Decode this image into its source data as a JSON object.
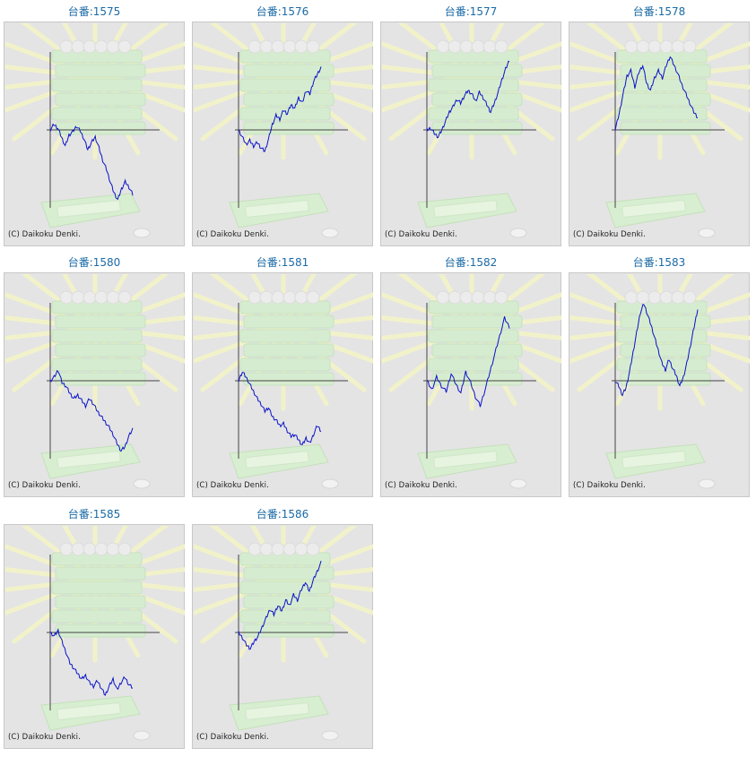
{
  "copyright": "(C) Daikoku Denki.",
  "colors": {
    "label": "#1a6aa6",
    "line": "#0a12c8",
    "axis": "#444444",
    "background": "#e4e4e4"
  },
  "machines": [
    {
      "label": "台番:1575",
      "trend": [
        0,
        6,
        2,
        -8,
        -18,
        -6,
        -2,
        4,
        -1,
        -10,
        -22,
        -14,
        -8,
        -20,
        -34,
        -44,
        -58,
        -70,
        -78,
        -66,
        -58,
        -64,
        -72
      ]
    },
    {
      "label": "台番:1576",
      "trend": [
        0,
        -8,
        -16,
        -12,
        -18,
        -14,
        -20,
        -24,
        -10,
        6,
        16,
        12,
        22,
        18,
        28,
        24,
        36,
        30,
        44,
        40,
        54,
        62,
        70
      ]
    },
    {
      "label": "台番:1577",
      "trend": [
        0,
        2,
        -4,
        -8,
        0,
        10,
        20,
        26,
        34,
        30,
        38,
        44,
        40,
        32,
        42,
        36,
        28,
        20,
        30,
        42,
        56,
        68,
        78
      ]
    },
    {
      "label": "台番:1578",
      "trend": [
        0,
        18,
        40,
        60,
        66,
        48,
        64,
        72,
        52,
        44,
        58,
        66,
        58,
        72,
        82,
        72,
        62,
        50,
        40,
        30,
        20,
        14
      ]
    },
    {
      "label": "台番:1580",
      "trend": [
        0,
        4,
        12,
        -2,
        -6,
        -14,
        -20,
        -16,
        -22,
        -28,
        -20,
        -26,
        -34,
        -40,
        -46,
        -52,
        -60,
        -70,
        -78,
        -74,
        -62,
        -54
      ]
    },
    {
      "label": "台番:1581",
      "trend": [
        0,
        10,
        4,
        -4,
        -12,
        -20,
        -26,
        -34,
        -30,
        -40,
        -44,
        -50,
        -48,
        -56,
        -62,
        -60,
        -66,
        -72,
        -64,
        -70,
        -60,
        -50,
        -56
      ]
    },
    {
      "label": "台番:1582",
      "trend": [
        0,
        -10,
        4,
        -6,
        -12,
        8,
        -4,
        -14,
        10,
        -2,
        -18,
        -28,
        -10,
        10,
        30,
        50,
        70,
        60
      ]
    },
    {
      "label": "台番:1583",
      "trend": [
        0,
        -6,
        -16,
        -8,
        10,
        32,
        54,
        76,
        86,
        74,
        62,
        48,
        34,
        20,
        12,
        24,
        14,
        6,
        -6,
        4,
        20,
        40,
        60,
        80
      ]
    },
    {
      "label": "台番:1585",
      "trend": [
        0,
        -4,
        2,
        -10,
        -22,
        -34,
        -40,
        -46,
        -52,
        -48,
        -56,
        -60,
        -54,
        -62,
        -70,
        -60,
        -52,
        -64,
        -56,
        -50,
        -58,
        -62
      ]
    },
    {
      "label": "台番:1586",
      "trend": [
        0,
        -6,
        -14,
        -18,
        -10,
        -4,
        6,
        16,
        26,
        20,
        30,
        24,
        36,
        30,
        42,
        36,
        48,
        56,
        46,
        58,
        68,
        78
      ]
    }
  ]
}
